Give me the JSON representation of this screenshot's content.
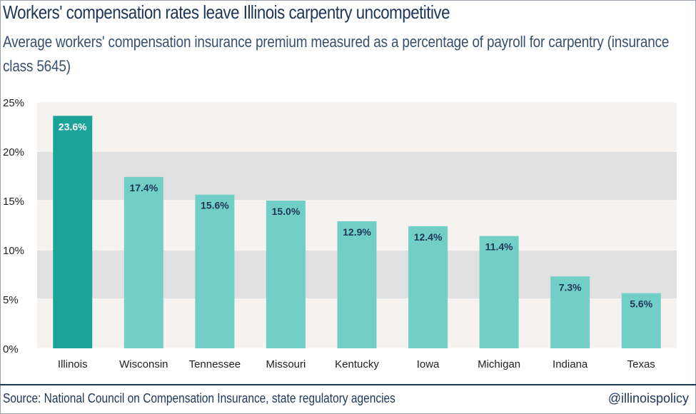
{
  "header": {
    "title": "Workers' compensation rates leave Illinois carpentry uncompetitive",
    "subtitle": "Average workers' compensation insurance premium measured as a percentage of payroll for carpentry (insurance class 5645)"
  },
  "footer": {
    "source": "Source: National Council on Compensation Insurance, state regulatory agencies",
    "handle": "@illinoispolicy"
  },
  "colors": {
    "highlight_bar": "#1aa398",
    "bar": "#72cfc7",
    "band_dark": "#e1e1e1",
    "band_light": "#f6f2ef",
    "highlight_label": "#ffffff",
    "label": "#1d3658"
  },
  "chart_data": {
    "type": "bar",
    "title": "Workers' compensation rates leave Illinois carpentry uncompetitive",
    "subtitle": "Average workers' compensation insurance premium measured as a percentage of payroll for carpentry (insurance class 5645)",
    "categories": [
      "Illinois",
      "Wisconsin",
      "Tennessee",
      "Missouri",
      "Kentucky",
      "Iowa",
      "Michigan",
      "Indiana",
      "Texas"
    ],
    "values": [
      23.6,
      17.4,
      15.6,
      15.0,
      12.9,
      12.4,
      11.4,
      7.3,
      5.6
    ],
    "data_labels": [
      "23.6%",
      "17.4%",
      "15.6%",
      "15.0%",
      "12.9%",
      "12.4%",
      "11.4%",
      "7.3%",
      "5.6%"
    ],
    "highlight_category": "Illinois",
    "ylim": [
      0,
      25
    ],
    "yticks": [
      0,
      5,
      10,
      15,
      20,
      25
    ],
    "ytick_labels": [
      "0%",
      "5%",
      "10%",
      "15%",
      "20%",
      "25%"
    ],
    "xlabel": "",
    "ylabel": "",
    "grid": "alternating bands"
  }
}
